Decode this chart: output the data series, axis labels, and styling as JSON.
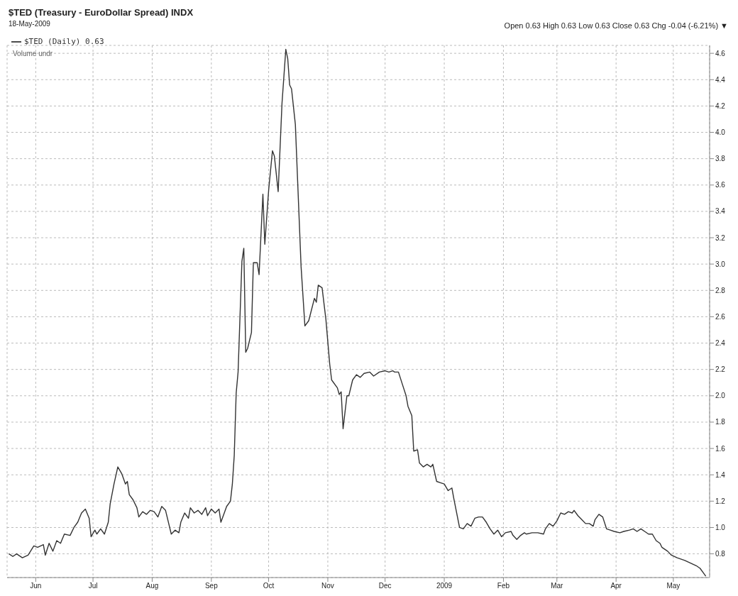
{
  "chart_data": {
    "type": "line",
    "title": "$TED (Treasury - EuroDollar Spread) INDX",
    "subtitle": "18-May-2009",
    "annotations": [
      "Open 0.63  High 0.63  Low 0.63  Close 0.63  Chg -0.04 (-6.21%) ▼",
      "Volume undr"
    ],
    "xlim": [
      "2008-05-17",
      "2009-05-20"
    ],
    "xticks": [
      {
        "value": "2008-06-01",
        "label": "Jun"
      },
      {
        "value": "2008-07-01",
        "label": "Jul"
      },
      {
        "value": "2008-08-01",
        "label": "Aug"
      },
      {
        "value": "2008-09-01",
        "label": "Sep"
      },
      {
        "value": "2008-10-01",
        "label": "Oct"
      },
      {
        "value": "2008-11-01",
        "label": "Nov"
      },
      {
        "value": "2008-12-01",
        "label": "Dec"
      },
      {
        "value": "2009-01-01",
        "label": "2009"
      },
      {
        "value": "2009-02-01",
        "label": "Feb"
      },
      {
        "value": "2009-03-01",
        "label": "Mar"
      },
      {
        "value": "2009-04-01",
        "label": "Apr"
      },
      {
        "value": "2009-05-01",
        "label": "May"
      }
    ],
    "ylim": [
      0.62,
      4.66
    ],
    "yticks": [
      0.8,
      {
        "value": 1,
        "label": "1.0"
      },
      1.2,
      1.4,
      1.6,
      1.8,
      {
        "value": 2,
        "label": "2.0"
      },
      2.2,
      2.4,
      2.6,
      2.8,
      {
        "value": 3,
        "label": "3.0"
      },
      3.2,
      3.4,
      3.6,
      3.8,
      {
        "value": 4,
        "label": "4.0"
      },
      4.2,
      4.4,
      4.6
    ],
    "grid": true,
    "legend": "top left",
    "marker": "none",
    "line_style": "solid",
    "x": [
      "2008-05-18",
      "2008-05-20",
      "2008-05-22",
      "2008-05-25",
      "2008-05-28",
      "2008-05-31",
      "2008-06-02",
      "2008-06-05",
      "2008-06-06",
      "2008-06-08",
      "2008-06-10",
      "2008-06-12",
      "2008-06-14",
      "2008-06-16",
      "2008-06-19",
      "2008-06-21",
      "2008-06-23",
      "2008-06-25",
      "2008-06-27",
      "2008-06-29",
      "2008-06-30",
      "2008-07-02",
      "2008-07-03",
      "2008-07-05",
      "2008-07-07",
      "2008-07-09",
      "2008-07-10",
      "2008-07-12",
      "2008-07-14",
      "2008-07-16",
      "2008-07-18",
      "2008-07-19",
      "2008-07-20",
      "2008-07-22",
      "2008-07-24",
      "2008-07-25",
      "2008-07-27",
      "2008-07-29",
      "2008-07-31",
      "2008-08-02",
      "2008-08-04",
      "2008-08-06",
      "2008-08-08",
      "2008-08-10",
      "2008-08-11",
      "2008-08-13",
      "2008-08-15",
      "2008-08-16",
      "2008-08-18",
      "2008-08-20",
      "2008-08-21",
      "2008-08-23",
      "2008-08-25",
      "2008-08-27",
      "2008-08-29",
      "2008-08-30",
      "2008-09-01",
      "2008-09-03",
      "2008-09-05",
      "2008-09-06",
      "2008-09-08",
      "2008-09-09",
      "2008-09-11",
      "2008-09-12",
      "2008-09-13",
      "2008-09-14",
      "2008-09-15",
      "2008-09-17",
      "2008-09-18",
      "2008-09-19",
      "2008-09-20",
      "2008-09-22",
      "2008-09-23",
      "2008-09-25",
      "2008-09-26",
      "2008-09-28",
      "2008-09-29",
      "2008-10-01",
      "2008-10-03",
      "2008-10-04",
      "2008-10-06",
      "2008-10-08",
      "2008-10-10",
      "2008-10-11",
      "2008-10-12",
      "2008-10-13",
      "2008-10-15",
      "2008-10-18",
      "2008-10-20",
      "2008-10-22",
      "2008-10-25",
      "2008-10-26",
      "2008-10-27",
      "2008-10-29",
      "2008-10-31",
      "2008-11-02",
      "2008-11-03",
      "2008-11-06",
      "2008-11-07",
      "2008-11-08",
      "2008-11-09",
      "2008-11-11",
      "2008-11-12",
      "2008-11-14",
      "2008-11-16",
      "2008-11-18",
      "2008-11-20",
      "2008-11-23",
      "2008-11-25",
      "2008-11-28",
      "2008-12-01",
      "2008-12-03",
      "2008-12-05",
      "2008-12-06",
      "2008-12-08",
      "2008-12-10",
      "2008-12-12",
      "2008-12-13",
      "2008-12-15",
      "2008-12-16",
      "2008-12-18",
      "2008-12-19",
      "2008-12-21",
      "2008-12-23",
      "2008-12-25",
      "2008-12-26",
      "2008-12-28",
      "2008-12-30",
      "2009-01-01",
      "2009-01-03",
      "2009-01-05",
      "2009-01-06",
      "2009-01-09",
      "2009-01-11",
      "2009-01-13",
      "2009-01-15",
      "2009-01-17",
      "2009-01-19",
      "2009-01-21",
      "2009-01-23",
      "2009-01-25",
      "2009-01-27",
      "2009-01-29",
      "2009-01-31",
      "2009-02-02",
      "2009-02-05",
      "2009-02-06",
      "2009-02-08",
      "2009-02-10",
      "2009-02-12",
      "2009-02-13",
      "2009-02-16",
      "2009-02-19",
      "2009-02-22",
      "2009-02-23",
      "2009-02-25",
      "2009-02-27",
      "2009-03-01",
      "2009-03-03",
      "2009-03-05",
      "2009-03-07",
      "2009-03-09",
      "2009-03-10",
      "2009-03-12",
      "2009-03-14",
      "2009-03-16",
      "2009-03-18",
      "2009-03-20",
      "2009-03-21",
      "2009-03-23",
      "2009-03-25",
      "2009-03-27",
      "2009-03-29",
      "2009-03-31",
      "2009-04-03",
      "2009-04-05",
      "2009-04-08",
      "2009-04-10",
      "2009-04-12",
      "2009-04-14",
      "2009-04-16",
      "2009-04-18",
      "2009-04-20",
      "2009-04-22",
      "2009-04-24",
      "2009-04-25",
      "2009-04-28",
      "2009-04-30",
      "2009-05-03",
      "2009-05-07",
      "2009-05-10",
      "2009-05-13",
      "2009-05-15",
      "2009-05-17",
      "2009-05-18"
    ],
    "series": [
      {
        "name": "$TED (Daily) 0.63",
        "color": "#333333",
        "values": [
          0.8,
          0.78,
          0.8,
          0.77,
          0.79,
          0.86,
          0.85,
          0.87,
          0.79,
          0.88,
          0.82,
          0.9,
          0.88,
          0.95,
          0.94,
          1.0,
          1.04,
          1.11,
          1.14,
          1.07,
          0.93,
          0.98,
          0.95,
          0.99,
          0.95,
          1.04,
          1.18,
          1.33,
          1.46,
          1.41,
          1.33,
          1.35,
          1.25,
          1.21,
          1.15,
          1.08,
          1.12,
          1.1,
          1.13,
          1.12,
          1.08,
          1.16,
          1.13,
          1.01,
          0.95,
          0.98,
          0.96,
          1.04,
          1.11,
          1.07,
          1.15,
          1.11,
          1.13,
          1.1,
          1.15,
          1.09,
          1.14,
          1.11,
          1.14,
          1.04,
          1.12,
          1.16,
          1.2,
          1.33,
          1.55,
          2.02,
          2.18,
          3.02,
          3.12,
          2.33,
          2.36,
          2.48,
          3.01,
          3.01,
          2.92,
          3.53,
          3.15,
          3.56,
          3.86,
          3.82,
          3.55,
          4.22,
          4.63,
          4.56,
          4.36,
          4.33,
          4.06,
          2.98,
          2.53,
          2.57,
          2.74,
          2.71,
          2.84,
          2.82,
          2.58,
          2.24,
          2.12,
          2.06,
          2.01,
          2.03,
          1.75,
          2.0,
          2.0,
          2.12,
          2.16,
          2.14,
          2.17,
          2.18,
          2.15,
          2.18,
          2.19,
          2.18,
          2.19,
          2.18,
          2.18,
          2.09,
          2.0,
          1.92,
          1.85,
          1.58,
          1.59,
          1.49,
          1.46,
          1.48,
          1.46,
          1.48,
          1.35,
          1.34,
          1.33,
          1.28,
          1.3,
          1.22,
          1.0,
          0.99,
          1.03,
          1.01,
          1.07,
          1.08,
          1.08,
          1.04,
          0.99,
          0.95,
          0.98,
          0.93,
          0.96,
          0.97,
          0.94,
          0.91,
          0.94,
          0.96,
          0.95,
          0.96,
          0.96,
          0.95,
          0.99,
          1.03,
          1.01,
          1.05,
          1.11,
          1.1,
          1.12,
          1.11,
          1.13,
          1.09,
          1.06,
          1.03,
          1.03,
          1.01,
          1.06,
          1.1,
          1.08,
          0.99,
          0.98,
          0.97,
          0.96,
          0.97,
          0.98,
          0.99,
          0.97,
          0.99,
          0.97,
          0.95,
          0.95,
          0.9,
          0.88,
          0.85,
          0.82,
          0.79,
          0.77,
          0.75,
          0.73,
          0.71,
          0.69,
          0.65,
          0.63
        ]
      }
    ]
  }
}
